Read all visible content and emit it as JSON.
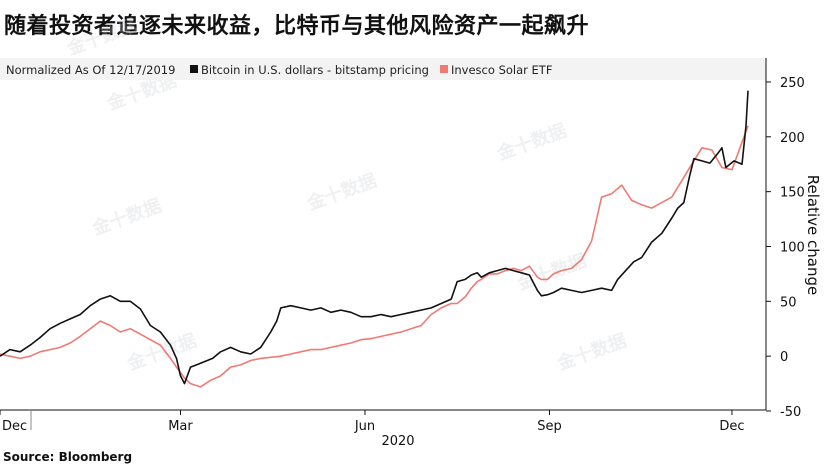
{
  "title": "随着投资者追逐未来收益，比特币与其他风险资产一起飙升",
  "source": "Source: Bloomberg",
  "watermark": "金十数据",
  "chart_data": {
    "type": "line",
    "legend_note": "Normalized As Of 12/17/2019",
    "ylabel": "Relative change",
    "year_label": "2020",
    "ylim": [
      -50,
      260
    ],
    "yticks": [
      -50,
      0,
      50,
      100,
      150,
      200,
      250
    ],
    "ytick_labels": [
      "-50",
      "0",
      "50",
      "100",
      "150",
      "200",
      "250"
    ],
    "xlim": [
      0,
      373
    ],
    "xticks": [
      {
        "label": "Dec",
        "x": 0
      },
      {
        "label": "Mar",
        "x": 90
      },
      {
        "label": "Jun",
        "x": 182
      },
      {
        "label": "Sep",
        "x": 274
      },
      {
        "label": "Dec",
        "x": 365
      }
    ],
    "series": [
      {
        "name": "Bitcoin in U.S. dollars - bitstamp pricing",
        "color": "#111111",
        "points": [
          [
            0,
            0
          ],
          [
            5,
            6
          ],
          [
            10,
            4
          ],
          [
            15,
            10
          ],
          [
            20,
            17
          ],
          [
            25,
            25
          ],
          [
            30,
            30
          ],
          [
            35,
            34
          ],
          [
            40,
            38
          ],
          [
            45,
            46
          ],
          [
            50,
            52
          ],
          [
            55,
            55
          ],
          [
            60,
            50
          ],
          [
            65,
            50
          ],
          [
            70,
            43
          ],
          [
            75,
            28
          ],
          [
            80,
            22
          ],
          [
            85,
            10
          ],
          [
            88,
            -2
          ],
          [
            90,
            -18
          ],
          [
            92,
            -25
          ],
          [
            95,
            -10
          ],
          [
            98,
            -8
          ],
          [
            102,
            -5
          ],
          [
            106,
            -2
          ],
          [
            110,
            4
          ],
          [
            115,
            8
          ],
          [
            120,
            4
          ],
          [
            125,
            2
          ],
          [
            130,
            8
          ],
          [
            135,
            22
          ],
          [
            138,
            32
          ],
          [
            140,
            44
          ],
          [
            145,
            46
          ],
          [
            150,
            44
          ],
          [
            155,
            42
          ],
          [
            160,
            44
          ],
          [
            165,
            40
          ],
          [
            170,
            42
          ],
          [
            175,
            40
          ],
          [
            180,
            36
          ],
          [
            185,
            36
          ],
          [
            190,
            38
          ],
          [
            195,
            36
          ],
          [
            200,
            38
          ],
          [
            205,
            40
          ],
          [
            210,
            42
          ],
          [
            215,
            44
          ],
          [
            220,
            48
          ],
          [
            225,
            52
          ],
          [
            228,
            68
          ],
          [
            232,
            70
          ],
          [
            235,
            74
          ],
          [
            238,
            76
          ],
          [
            240,
            72
          ],
          [
            244,
            76
          ],
          [
            248,
            78
          ],
          [
            252,
            80
          ],
          [
            256,
            78
          ],
          [
            260,
            76
          ],
          [
            264,
            74
          ],
          [
            268,
            60
          ],
          [
            270,
            55
          ],
          [
            273,
            56
          ],
          [
            276,
            58
          ],
          [
            280,
            62
          ],
          [
            285,
            60
          ],
          [
            290,
            58
          ],
          [
            295,
            60
          ],
          [
            300,
            62
          ],
          [
            305,
            60
          ],
          [
            308,
            70
          ],
          [
            312,
            78
          ],
          [
            316,
            86
          ],
          [
            320,
            90
          ],
          [
            325,
            104
          ],
          [
            330,
            112
          ],
          [
            335,
            126
          ],
          [
            338,
            135
          ],
          [
            341,
            140
          ],
          [
            344,
            165
          ],
          [
            346,
            180
          ],
          [
            350,
            178
          ],
          [
            354,
            176
          ],
          [
            358,
            185
          ],
          [
            360,
            190
          ],
          [
            362,
            172
          ],
          [
            366,
            178
          ],
          [
            370,
            175
          ],
          [
            372,
            210
          ],
          [
            373,
            242
          ]
        ]
      },
      {
        "name": "Invesco Solar ETF",
        "color": "#f07a72",
        "points": [
          [
            0,
            2
          ],
          [
            5,
            0
          ],
          [
            10,
            -2
          ],
          [
            15,
            0
          ],
          [
            20,
            4
          ],
          [
            25,
            6
          ],
          [
            30,
            8
          ],
          [
            35,
            12
          ],
          [
            40,
            18
          ],
          [
            45,
            25
          ],
          [
            50,
            32
          ],
          [
            55,
            28
          ],
          [
            60,
            22
          ],
          [
            65,
            25
          ],
          [
            70,
            20
          ],
          [
            75,
            15
          ],
          [
            80,
            10
          ],
          [
            85,
            -2
          ],
          [
            88,
            -10
          ],
          [
            90,
            -15
          ],
          [
            92,
            -20
          ],
          [
            95,
            -25
          ],
          [
            100,
            -28
          ],
          [
            105,
            -22
          ],
          [
            110,
            -18
          ],
          [
            115,
            -10
          ],
          [
            120,
            -8
          ],
          [
            125,
            -4
          ],
          [
            130,
            -2
          ],
          [
            135,
            -1
          ],
          [
            140,
            0
          ],
          [
            145,
            2
          ],
          [
            150,
            4
          ],
          [
            155,
            6
          ],
          [
            160,
            6
          ],
          [
            165,
            8
          ],
          [
            170,
            10
          ],
          [
            175,
            12
          ],
          [
            180,
            15
          ],
          [
            185,
            16
          ],
          [
            190,
            18
          ],
          [
            195,
            20
          ],
          [
            200,
            22
          ],
          [
            205,
            25
          ],
          [
            210,
            28
          ],
          [
            215,
            38
          ],
          [
            220,
            44
          ],
          [
            225,
            48
          ],
          [
            228,
            48
          ],
          [
            232,
            54
          ],
          [
            235,
            62
          ],
          [
            238,
            68
          ],
          [
            240,
            70
          ],
          [
            244,
            75
          ],
          [
            248,
            75
          ],
          [
            252,
            78
          ],
          [
            256,
            80
          ],
          [
            260,
            78
          ],
          [
            264,
            82
          ],
          [
            268,
            72
          ],
          [
            270,
            70
          ],
          [
            273,
            70
          ],
          [
            276,
            75
          ],
          [
            280,
            78
          ],
          [
            285,
            80
          ],
          [
            290,
            88
          ],
          [
            295,
            105
          ],
          [
            300,
            145
          ],
          [
            305,
            148
          ],
          [
            310,
            156
          ],
          [
            315,
            142
          ],
          [
            320,
            138
          ],
          [
            325,
            135
          ],
          [
            330,
            140
          ],
          [
            335,
            145
          ],
          [
            340,
            160
          ],
          [
            345,
            175
          ],
          [
            350,
            190
          ],
          [
            355,
            188
          ],
          [
            360,
            172
          ],
          [
            365,
            170
          ],
          [
            368,
            185
          ],
          [
            370,
            195
          ],
          [
            372,
            205
          ],
          [
            373,
            210
          ]
        ]
      }
    ]
  }
}
